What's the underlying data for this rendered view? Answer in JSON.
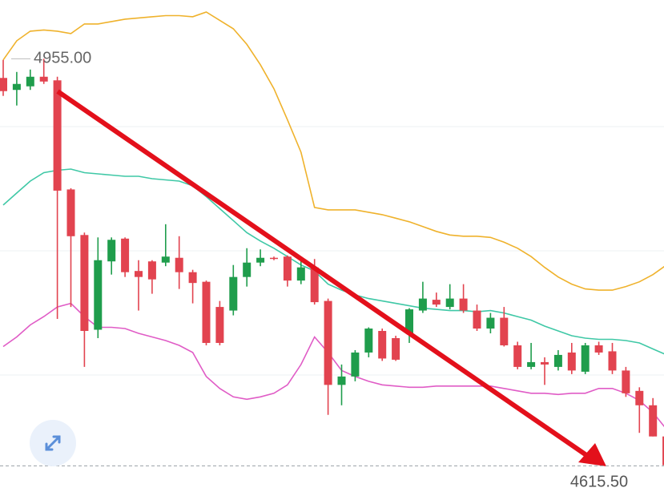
{
  "chart_data": {
    "type": "candlestick",
    "ylim": [
      4587,
      5004
    ],
    "up_color": "#1f9d4c",
    "down_color": "#e2434f",
    "open": [
      4939,
      4929,
      4932,
      4940,
      4937,
      4846,
      4808,
      4729,
      4786,
      4805,
      4778,
      4786,
      4785,
      4789,
      4777,
      4769,
      4748,
      4745,
      4773,
      4785,
      4789,
      4790,
      4770,
      4781,
      4753,
      4683,
      4690,
      4710,
      4728,
      4722,
      4726,
      4745,
      4754,
      4748,
      4755,
      4745,
      4730,
      4739,
      4716,
      4698,
      4702,
      4698,
      4710,
      4694,
      4716,
      4711,
      4695,
      4678,
      4666,
      4640
    ],
    "high": [
      4954,
      4944,
      4946,
      4955,
      4940,
      4847,
      4810,
      4806,
      4806,
      4806,
      4787,
      4787,
      4817,
      4807,
      4779,
      4770,
      4753,
      4783,
      4797,
      4796,
      4790,
      4791,
      4787,
      4788,
      4755,
      4700,
      4712,
      4731,
      4730,
      4724,
      4747,
      4769,
      4760,
      4767,
      4767,
      4750,
      4743,
      4748,
      4719,
      4718,
      4706,
      4712,
      4718,
      4718,
      4719,
      4718,
      4698,
      4681,
      4672,
      4643
    ],
    "low": [
      4924,
      4916,
      4929,
      4934,
      4738,
      4748,
      4698,
      4722,
      4775,
      4773,
      4745,
      4759,
      4782,
      4763,
      4751,
      4716,
      4716,
      4741,
      4765,
      4782,
      4787,
      4765,
      4767,
      4750,
      4658,
      4666,
      4686,
      4706,
      4703,
      4703,
      4718,
      4743,
      4748,
      4746,
      4743,
      4728,
      4726,
      4715,
      4696,
      4696,
      4683,
      4695,
      4692,
      4692,
      4708,
      4692,
      4673,
      4643,
      4640,
      4613
    ],
    "close": [
      4928,
      4934,
      4940,
      4936,
      4845,
      4807,
      4728,
      4787,
      4804,
      4777,
      4773,
      4771,
      4790,
      4777,
      4768,
      4718,
      4718,
      4773,
      4785,
      4789,
      4788,
      4770,
      4781,
      4752,
      4683,
      4690,
      4710,
      4730,
      4705,
      4704,
      4746,
      4755,
      4750,
      4755,
      4745,
      4730,
      4739,
      4716,
      4698,
      4702,
      4700,
      4708,
      4695,
      4716,
      4710,
      4695,
      4676,
      4666,
      4640,
      4616
    ],
    "bands": [
      {
        "color": "#efb22c",
        "values": [
          4954,
          4970,
          4978,
          4979,
          4978,
          4976,
          4984,
          4984,
          4986,
          4988,
          4989,
          4990,
          4991,
          4991,
          4990,
          4994,
          4987,
          4980,
          4967,
          4950,
          4930,
          4904,
          4877,
          4831,
          4829,
          4829,
          4829,
          4827,
          4825,
          4822,
          4819,
          4815,
          4811,
          4808,
          4807,
          4807,
          4806,
          4802,
          4797,
          4790,
          4781,
          4773,
          4767,
          4763,
          4762,
          4762,
          4765,
          4769,
          4775,
          4783
        ]
      },
      {
        "color": "#3fc8a6",
        "values": [
          4833,
          4843,
          4853,
          4860,
          4862,
          4863,
          4860,
          4859,
          4858,
          4857,
          4857,
          4855,
          4854,
          4853,
          4849,
          4840,
          4830,
          4820,
          4810,
          4803,
          4797,
          4790,
          4783,
          4778,
          4767,
          4762,
          4758,
          4755,
          4753,
          4751,
          4749,
          4747,
          4746,
          4745,
          4745,
          4744,
          4745,
          4743,
          4740,
          4737,
          4732,
          4728,
          4724,
          4722,
          4721,
          4721,
          4720,
          4718,
          4713,
          4708
        ]
      },
      {
        "color": "#e05cc6",
        "values": [
          4715,
          4723,
          4733,
          4740,
          4748,
          4751,
          4740,
          4731,
          4731,
          4730,
          4726,
          4723,
          4720,
          4716,
          4710,
          4690,
          4680,
          4673,
          4671,
          4673,
          4676,
          4683,
          4700,
          4723,
          4710,
          4695,
          4690,
          4686,
          4683,
          4682,
          4681,
          4681,
          4682,
          4682,
          4682,
          4682,
          4682,
          4680,
          4678,
          4676,
          4676,
          4675,
          4676,
          4676,
          4680,
          4680,
          4676,
          4670,
          4660,
          4646
        ]
      }
    ],
    "high_label": {
      "value": 4955,
      "label": "4955.00"
    },
    "last_price": {
      "value": 4615.5,
      "label": "4615.50"
    }
  }
}
